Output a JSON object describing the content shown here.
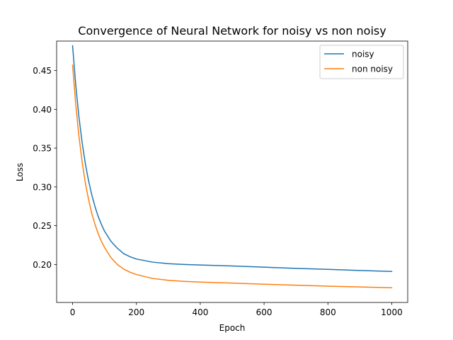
{
  "chart_data": {
    "type": "line",
    "title": "Convergence of Neural Network for noisy vs non noisy",
    "xlabel": "Epoch",
    "ylabel": "Loss",
    "xlim": [
      -50,
      1050
    ],
    "ylim": [
      0.151,
      0.488
    ],
    "xticks": [
      0,
      200,
      400,
      600,
      800,
      1000
    ],
    "yticks": [
      0.2,
      0.25,
      0.3,
      0.35,
      0.4,
      0.45
    ],
    "xtick_labels": [
      "0",
      "200",
      "400",
      "600",
      "800",
      "1000"
    ],
    "ytick_labels": [
      "0.20",
      "0.25",
      "0.30",
      "0.35",
      "0.40",
      "0.45"
    ],
    "grid": false,
    "legend": "top-right",
    "series": [
      {
        "name": "noisy",
        "color": "#1f77b4",
        "x": [
          0,
          10,
          20,
          30,
          40,
          50,
          60,
          70,
          80,
          90,
          100,
          120,
          140,
          160,
          180,
          200,
          250,
          300,
          350,
          400,
          500,
          600,
          700,
          800,
          900,
          1000
        ],
        "y": [
          0.482,
          0.431,
          0.39,
          0.357,
          0.33,
          0.308,
          0.29,
          0.275,
          0.262,
          0.252,
          0.243,
          0.23,
          0.221,
          0.214,
          0.21,
          0.207,
          0.203,
          0.201,
          0.2,
          0.1993,
          0.198,
          0.1965,
          0.195,
          0.1937,
          0.1922,
          0.191
        ]
      },
      {
        "name": "non noisy",
        "color": "#ff7f0e",
        "x": [
          0,
          10,
          20,
          30,
          40,
          50,
          60,
          70,
          80,
          90,
          100,
          120,
          140,
          160,
          180,
          200,
          250,
          300,
          350,
          400,
          500,
          600,
          700,
          800,
          900,
          1000
        ],
        "y": [
          0.457,
          0.406,
          0.365,
          0.332,
          0.305,
          0.284,
          0.266,
          0.252,
          0.24,
          0.23,
          0.222,
          0.209,
          0.2,
          0.194,
          0.19,
          0.187,
          0.182,
          0.1795,
          0.1782,
          0.1773,
          0.176,
          0.1745,
          0.1733,
          0.172,
          0.171,
          0.17
        ]
      }
    ]
  }
}
